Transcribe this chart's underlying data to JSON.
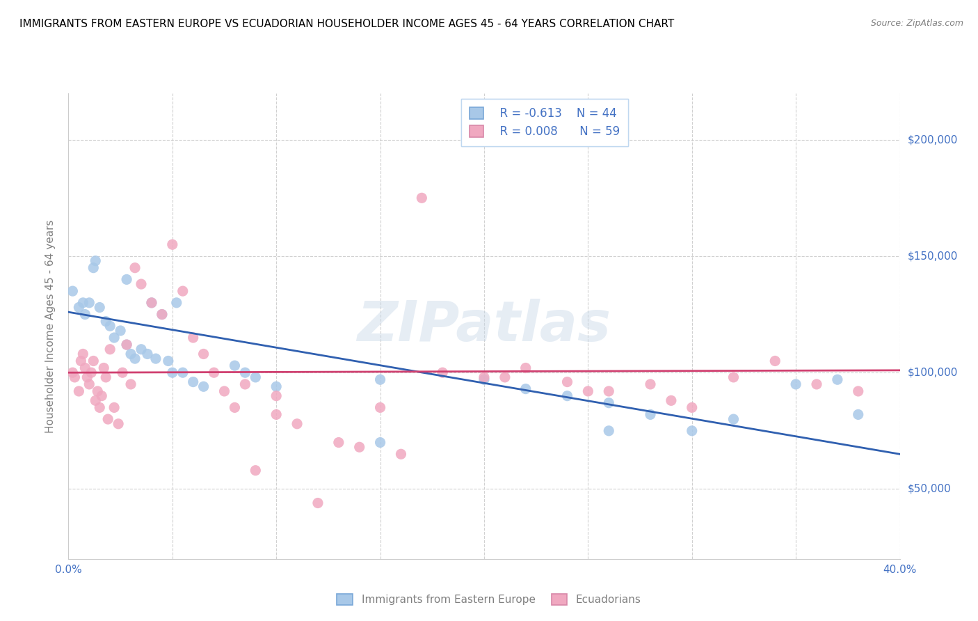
{
  "title": "IMMIGRANTS FROM EASTERN EUROPE VS ECUADORIAN HOUSEHOLDER INCOME AGES 45 - 64 YEARS CORRELATION CHART",
  "source": "Source: ZipAtlas.com",
  "ylabel": "Householder Income Ages 45 - 64 years",
  "xlim": [
    0.0,
    0.4
  ],
  "ylim": [
    20000,
    220000
  ],
  "yticks": [
    50000,
    100000,
    150000,
    200000
  ],
  "ytick_labels": [
    "$50,000",
    "$100,000",
    "$150,000",
    "$200,000"
  ],
  "xticks": [
    0.0,
    0.05,
    0.1,
    0.15,
    0.2,
    0.25,
    0.3,
    0.35,
    0.4
  ],
  "xtick_labels": [
    "0.0%",
    "",
    "",
    "",
    "",
    "",
    "",
    "",
    "40.0%"
  ],
  "legend_blue_r": "R = -0.613",
  "legend_blue_n": "N = 44",
  "legend_pink_r": "R = 0.008",
  "legend_pink_n": "N = 59",
  "blue_color": "#a8c8e8",
  "pink_color": "#f0a8c0",
  "blue_line_color": "#3060b0",
  "pink_line_color": "#d04070",
  "watermark": "ZIPatlas",
  "dot_size": 120,
  "blue_scatter_x": [
    0.002,
    0.005,
    0.007,
    0.008,
    0.01,
    0.012,
    0.013,
    0.015,
    0.018,
    0.02,
    0.022,
    0.025,
    0.028,
    0.028,
    0.03,
    0.032,
    0.035,
    0.038,
    0.04,
    0.042,
    0.045,
    0.048,
    0.05,
    0.052,
    0.055,
    0.06,
    0.065,
    0.08,
    0.085,
    0.09,
    0.1,
    0.15,
    0.2,
    0.22,
    0.24,
    0.26,
    0.28,
    0.3,
    0.32,
    0.35,
    0.37,
    0.38,
    0.15,
    0.26
  ],
  "blue_scatter_y": [
    135000,
    128000,
    130000,
    125000,
    130000,
    145000,
    148000,
    128000,
    122000,
    120000,
    115000,
    118000,
    140000,
    112000,
    108000,
    106000,
    110000,
    108000,
    130000,
    106000,
    125000,
    105000,
    100000,
    130000,
    100000,
    96000,
    94000,
    103000,
    100000,
    98000,
    94000,
    97000,
    97000,
    93000,
    90000,
    87000,
    82000,
    75000,
    80000,
    95000,
    97000,
    82000,
    70000,
    75000
  ],
  "pink_scatter_x": [
    0.002,
    0.003,
    0.005,
    0.006,
    0.007,
    0.008,
    0.009,
    0.01,
    0.011,
    0.012,
    0.013,
    0.014,
    0.015,
    0.016,
    0.017,
    0.018,
    0.019,
    0.02,
    0.022,
    0.024,
    0.026,
    0.028,
    0.03,
    0.032,
    0.035,
    0.04,
    0.045,
    0.05,
    0.055,
    0.06,
    0.065,
    0.07,
    0.075,
    0.08,
    0.085,
    0.09,
    0.1,
    0.11,
    0.12,
    0.13,
    0.14,
    0.15,
    0.16,
    0.17,
    0.18,
    0.2,
    0.22,
    0.24,
    0.25,
    0.26,
    0.28,
    0.29,
    0.3,
    0.32,
    0.34,
    0.36,
    0.38,
    0.1,
    0.21
  ],
  "pink_scatter_y": [
    100000,
    98000,
    92000,
    105000,
    108000,
    102000,
    98000,
    95000,
    100000,
    105000,
    88000,
    92000,
    85000,
    90000,
    102000,
    98000,
    80000,
    110000,
    85000,
    78000,
    100000,
    112000,
    95000,
    145000,
    138000,
    130000,
    125000,
    155000,
    135000,
    115000,
    108000,
    100000,
    92000,
    85000,
    95000,
    58000,
    82000,
    78000,
    44000,
    70000,
    68000,
    85000,
    65000,
    175000,
    100000,
    98000,
    102000,
    96000,
    92000,
    92000,
    95000,
    88000,
    85000,
    98000,
    105000,
    95000,
    92000,
    90000,
    98000
  ],
  "blue_line_x": [
    0.0,
    0.4
  ],
  "blue_line_y": [
    126000,
    65000
  ],
  "pink_line_x": [
    0.0,
    0.4
  ],
  "pink_line_y": [
    100000,
    101000
  ]
}
